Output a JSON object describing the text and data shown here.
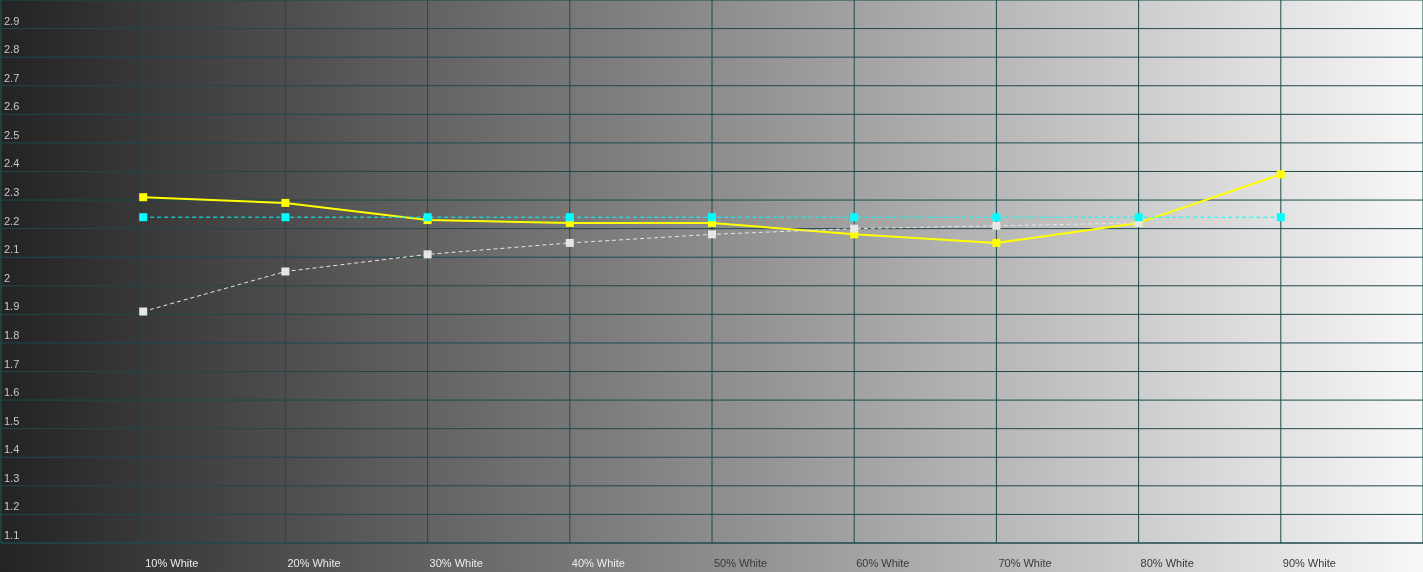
{
  "chart_data": {
    "type": "line",
    "categories": [
      "10% White",
      "20% White",
      "30% White",
      "40% White",
      "50% White",
      "60% White",
      "70% White",
      "80% White",
      "90% White"
    ],
    "series": [
      {
        "color": "#ffff00",
        "line_style": "solid",
        "values": [
          2.31,
          2.29,
          2.23,
          2.22,
          2.22,
          2.18,
          2.15,
          2.22,
          2.39
        ]
      },
      {
        "color": "#e6e6e6",
        "line_style": "dashed",
        "values": [
          1.91,
          2.05,
          2.11,
          2.15,
          2.18,
          2.2,
          2.21,
          2.22,
          null
        ]
      },
      {
        "color": "#00ffff",
        "line_style": "dashed",
        "values": [
          2.24,
          2.24,
          2.24,
          2.24,
          2.24,
          2.24,
          2.24,
          2.24,
          2.24
        ]
      }
    ],
    "ylim": [
      1.1,
      3.0
    ],
    "yticks": [
      1.1,
      1.2,
      1.3,
      1.4,
      1.5,
      1.6,
      1.7,
      1.8,
      1.9,
      2,
      2.1,
      2.2,
      2.3,
      2.4,
      2.5,
      2.6,
      2.7,
      2.8,
      2.9
    ],
    "grid": true,
    "marker": "square"
  }
}
